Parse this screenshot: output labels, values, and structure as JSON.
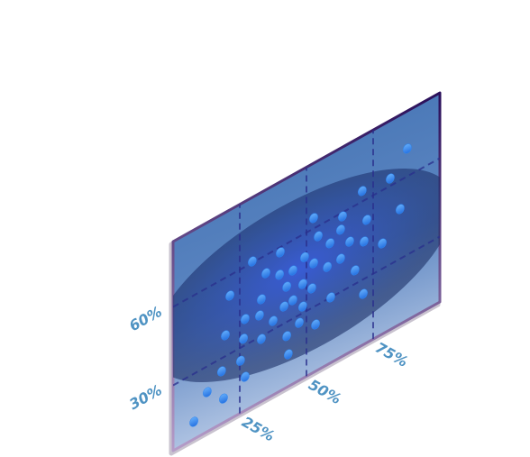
{
  "chart_data": {
    "type": "scatter",
    "color": "#2f86f0",
    "x": [
      7.8,
      12.8,
      18.9,
      18.2,
      25.3,
      27,
      19.6,
      21.3,
      26.4,
      27,
      33.1,
      32.4,
      33.1,
      34.8,
      29.7,
      37.5,
      39.9,
      41.6,
      40.2,
      43.2,
      42.6,
      44.9,
      47.3,
      48.6,
      48.6,
      49.3,
      52,
      53.4,
      52.7,
      54.4,
      52.7,
      57.8,
      59.1,
      58.8,
      63.5,
      62.8,
      62.8,
      66.2,
      68.2,
      71.3,
      71.6,
      72.6,
      70.9,
      78.4,
      81.4,
      85.1,
      87.8,
      42.6,
      44.9
    ],
    "values": [
      11.6,
      20.1,
      14.2,
      25,
      25,
      17.9,
      38,
      52.2,
      32.8,
      40,
      28.9,
      38.3,
      44.1,
      53.1,
      60.5,
      33.3,
      49.6,
      36.5,
      58,
      17.3,
      24.6,
      48.4,
      27,
      32.5,
      41.1,
      51,
      37.5,
      22.9,
      46.7,
      56.1,
      64,
      42.4,
      30,
      50.9,
      58.5,
      53.8,
      42.7,
      47.3,
      35.2,
      24.4,
      44.3,
      52,
      64,
      39.7,
      62.8,
      49,
      70.6,
      43.5,
      37
    ],
    "xlim": [
      0,
      100
    ],
    "ylim": [
      5,
      85
    ],
    "xticks": [
      {
        "value": 25,
        "label": "25%"
      },
      {
        "value": 50,
        "label": "50%"
      },
      {
        "value": 75,
        "label": "75%"
      }
    ],
    "yticks": [
      {
        "value": 30,
        "label": "30%"
      },
      {
        "value": 60,
        "label": "60%"
      }
    ],
    "grid": true
  }
}
